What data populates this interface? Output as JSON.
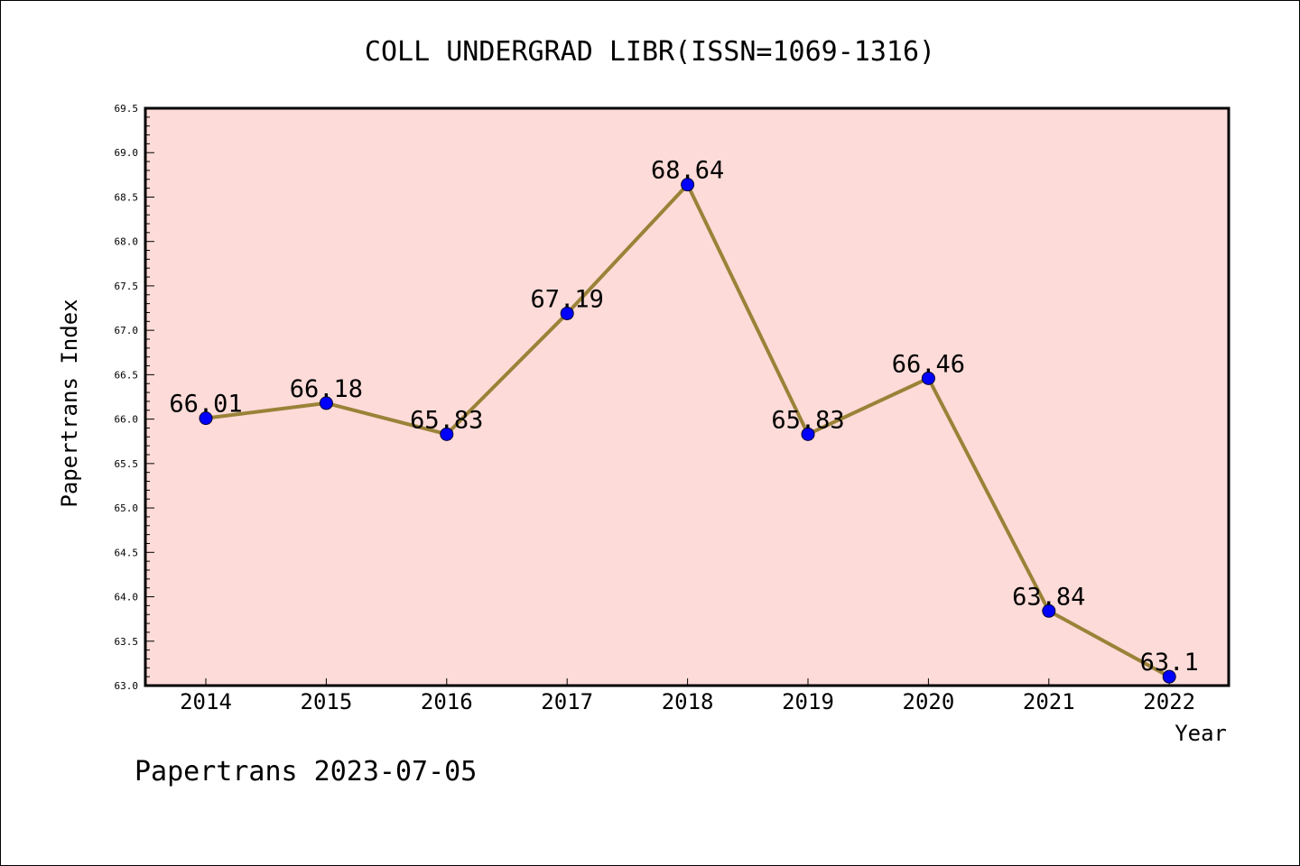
{
  "chart_data": {
    "type": "line",
    "title": "COLL UNDERGRAD LIBR(ISSN=1069-1316)",
    "xlabel": "Year",
    "ylabel": "Papertrans Index",
    "x": [
      "2014",
      "2015",
      "2016",
      "2017",
      "2018",
      "2019",
      "2020",
      "2021",
      "2022"
    ],
    "series": [
      {
        "values": [
          66.01,
          66.18,
          65.83,
          67.19,
          68.64,
          65.83,
          66.46,
          63.84,
          63.1
        ],
        "labels": [
          "66.01",
          "66.18",
          "65.83",
          "67.19",
          "68.64",
          "65.83",
          "66.46",
          "63.84",
          "63.1"
        ]
      }
    ],
    "ylim": [
      63.0,
      69.5
    ],
    "yticks": [
      "63.0",
      "63.5",
      "64.0",
      "64.5",
      "65.0",
      "65.5",
      "66.0",
      "66.5",
      "67.0",
      "67.5",
      "68.0",
      "68.5",
      "69.0",
      "69.5"
    ],
    "grid": false,
    "colors": {
      "plot_background": "#fddbd8",
      "line": "#9a8238",
      "marker": "#0000ff"
    }
  },
  "footer": "Papertrans 2023-07-05"
}
